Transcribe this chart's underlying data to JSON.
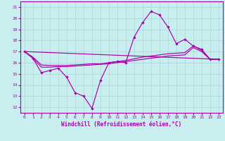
{
  "xlabel": "Windchill (Refroidissement éolien,°C)",
  "xlim": [
    -0.5,
    23.5
  ],
  "ylim": [
    11.5,
    21.5
  ],
  "yticks": [
    12,
    13,
    14,
    15,
    16,
    17,
    18,
    19,
    20,
    21
  ],
  "xticks": [
    0,
    1,
    2,
    3,
    4,
    5,
    6,
    7,
    8,
    9,
    10,
    11,
    12,
    13,
    14,
    15,
    16,
    17,
    18,
    19,
    20,
    21,
    22,
    23
  ],
  "bg_color": "#c8eef0",
  "line_color": "#aa00aa",
  "grid_color": "#aad8d8",
  "series1_x": [
    0,
    1,
    2,
    3,
    4,
    5,
    6,
    7,
    8,
    9,
    10,
    11,
    12,
    13,
    14,
    15,
    16,
    17,
    18,
    19,
    20,
    21,
    22,
    23
  ],
  "series1_y": [
    17.0,
    16.4,
    15.1,
    15.3,
    15.5,
    14.7,
    13.3,
    13.0,
    11.9,
    14.4,
    16.0,
    16.1,
    16.0,
    18.3,
    19.6,
    20.6,
    20.3,
    19.2,
    17.7,
    18.1,
    17.5,
    17.2,
    16.3,
    16.3
  ],
  "series2_x": [
    0,
    1,
    2,
    3,
    4,
    5,
    6,
    7,
    8,
    9,
    10,
    11,
    12,
    13,
    14,
    15,
    16,
    17,
    18,
    19,
    20,
    21,
    22,
    23
  ],
  "series2_y": [
    17.0,
    16.4,
    15.6,
    15.6,
    15.65,
    15.65,
    15.7,
    15.75,
    15.8,
    15.85,
    15.9,
    16.0,
    16.1,
    16.2,
    16.3,
    16.4,
    16.5,
    16.6,
    16.65,
    16.7,
    17.35,
    17.0,
    16.3,
    16.3
  ],
  "series3_x": [
    0,
    23
  ],
  "series3_y": [
    17.0,
    16.3
  ],
  "series4_x": [
    0,
    1,
    2,
    3,
    4,
    5,
    6,
    7,
    8,
    9,
    10,
    11,
    12,
    13,
    14,
    15,
    16,
    17,
    18,
    19,
    20,
    21,
    22,
    23
  ],
  "series4_y": [
    17.0,
    16.5,
    15.8,
    15.75,
    15.75,
    15.75,
    15.8,
    15.85,
    15.9,
    15.9,
    16.0,
    16.1,
    16.2,
    16.35,
    16.5,
    16.6,
    16.7,
    16.8,
    16.85,
    16.9,
    17.5,
    17.1,
    16.3,
    16.3
  ]
}
